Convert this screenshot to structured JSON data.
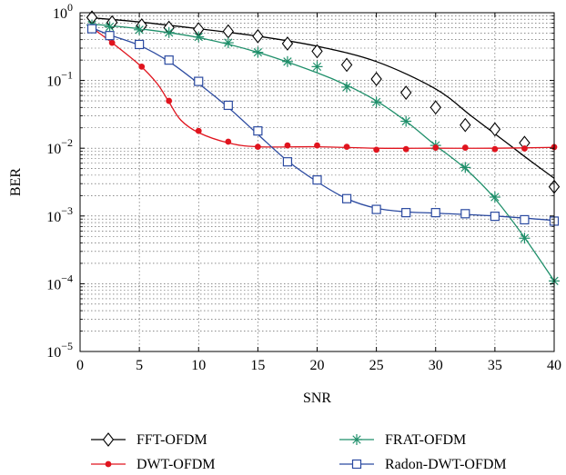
{
  "chart_data": {
    "type": "line",
    "title": "",
    "xlabel": "SNR",
    "ylabel": "BER",
    "xlim": [
      0,
      40
    ],
    "ylim": [
      1e-05,
      1
    ],
    "yscale": "log",
    "grid": true,
    "legend_position": "bottom",
    "x_ticks": [
      "0",
      "5",
      "10",
      "15",
      "20",
      "25",
      "30",
      "35",
      "40"
    ],
    "y_ticks": [
      {
        "value": 1,
        "base": "10",
        "exp": "0"
      },
      {
        "value": 0.1,
        "base": "10",
        "exp": "−1"
      },
      {
        "value": 0.01,
        "base": "10",
        "exp": "−2"
      },
      {
        "value": 0.001,
        "base": "10",
        "exp": "−3"
      },
      {
        "value": 0.0001,
        "base": "10",
        "exp": "−4"
      },
      {
        "value": 1e-05,
        "base": "10",
        "exp": "−5"
      }
    ],
    "series": [
      {
        "name": "FFT-OFDM",
        "marker": "diamond",
        "color": "#000000",
        "x": [
          1,
          2.7,
          5.2,
          7.5,
          10,
          12.5,
          15,
          17.5,
          20,
          22.5,
          25,
          27.5,
          30,
          32.5,
          35,
          37.5,
          40
        ],
        "y": [
          0.85,
          0.72,
          0.65,
          0.6,
          0.57,
          0.53,
          0.45,
          0.35,
          0.27,
          0.17,
          0.105,
          0.066,
          0.04,
          0.022,
          0.019,
          0.012,
          0.0027
        ],
        "curve_x": [
          1,
          5,
          10,
          15,
          20,
          25,
          30,
          33,
          36,
          38,
          40
        ],
        "curve_y": [
          0.84,
          0.73,
          0.58,
          0.45,
          0.32,
          0.19,
          0.075,
          0.03,
          0.012,
          0.0065,
          0.0036
        ]
      },
      {
        "name": "FRAT-OFDM",
        "marker": "star",
        "color": "#1f8f6a",
        "x": [
          1,
          2.5,
          5,
          7.5,
          10,
          12.5,
          15,
          17.5,
          20,
          22.5,
          25,
          27.5,
          30,
          32.5,
          35,
          37.5,
          40
        ],
        "y": [
          0.66,
          0.62,
          0.56,
          0.51,
          0.44,
          0.36,
          0.26,
          0.19,
          0.16,
          0.08,
          0.048,
          0.025,
          0.011,
          0.0052,
          0.0019,
          0.00047,
          0.00011
        ],
        "curve_x": [
          1,
          5,
          10,
          15,
          20,
          22.5,
          25,
          27.5,
          30,
          32.5,
          35,
          37.5,
          40
        ],
        "curve_y": [
          0.68,
          0.58,
          0.43,
          0.26,
          0.13,
          0.085,
          0.05,
          0.025,
          0.011,
          0.005,
          0.0018,
          0.00048,
          0.00011
        ]
      },
      {
        "name": "DWT-OFDM",
        "marker": "dot",
        "color": "#e0141e",
        "x": [
          1,
          2.7,
          5.2,
          7.5,
          10,
          12.5,
          15,
          17.5,
          20,
          22.5,
          25,
          27.5,
          30,
          32.5,
          35,
          37.5,
          40
        ],
        "y": [
          0.6,
          0.36,
          0.16,
          0.05,
          0.018,
          0.0125,
          0.0105,
          0.011,
          0.011,
          0.0105,
          0.0095,
          0.0097,
          0.0102,
          0.0102,
          0.0097,
          0.0099,
          0.0104
        ],
        "curve_x": [
          1,
          2.7,
          5,
          6.5,
          7.5,
          8.5,
          10,
          12.5,
          15,
          20,
          25,
          30,
          35,
          40
        ],
        "curve_y": [
          0.6,
          0.36,
          0.17,
          0.09,
          0.048,
          0.026,
          0.017,
          0.012,
          0.0105,
          0.0105,
          0.01,
          0.01,
          0.01,
          0.0103
        ]
      },
      {
        "name": "Radon-DWT-OFDM",
        "marker": "square",
        "color": "#2b4aa0",
        "x": [
          1,
          2.5,
          5,
          7.5,
          10,
          12.5,
          15,
          17.5,
          20,
          22.5,
          25,
          27.5,
          30,
          32.5,
          35,
          37.5,
          40
        ],
        "y": [
          0.58,
          0.46,
          0.34,
          0.2,
          0.097,
          0.043,
          0.018,
          0.0063,
          0.0034,
          0.0018,
          0.00125,
          0.00112,
          0.00112,
          0.00108,
          0.00099,
          0.00088,
          0.00084
        ],
        "curve_x": [
          1,
          2.5,
          5,
          7.5,
          10,
          12.5,
          15,
          17.5,
          20,
          22.5,
          25,
          27.5,
          30,
          35,
          40
        ],
        "curve_y": [
          0.6,
          0.47,
          0.33,
          0.19,
          0.09,
          0.04,
          0.016,
          0.0065,
          0.0032,
          0.0018,
          0.0013,
          0.00115,
          0.0011,
          0.001,
          0.00086
        ]
      }
    ]
  }
}
